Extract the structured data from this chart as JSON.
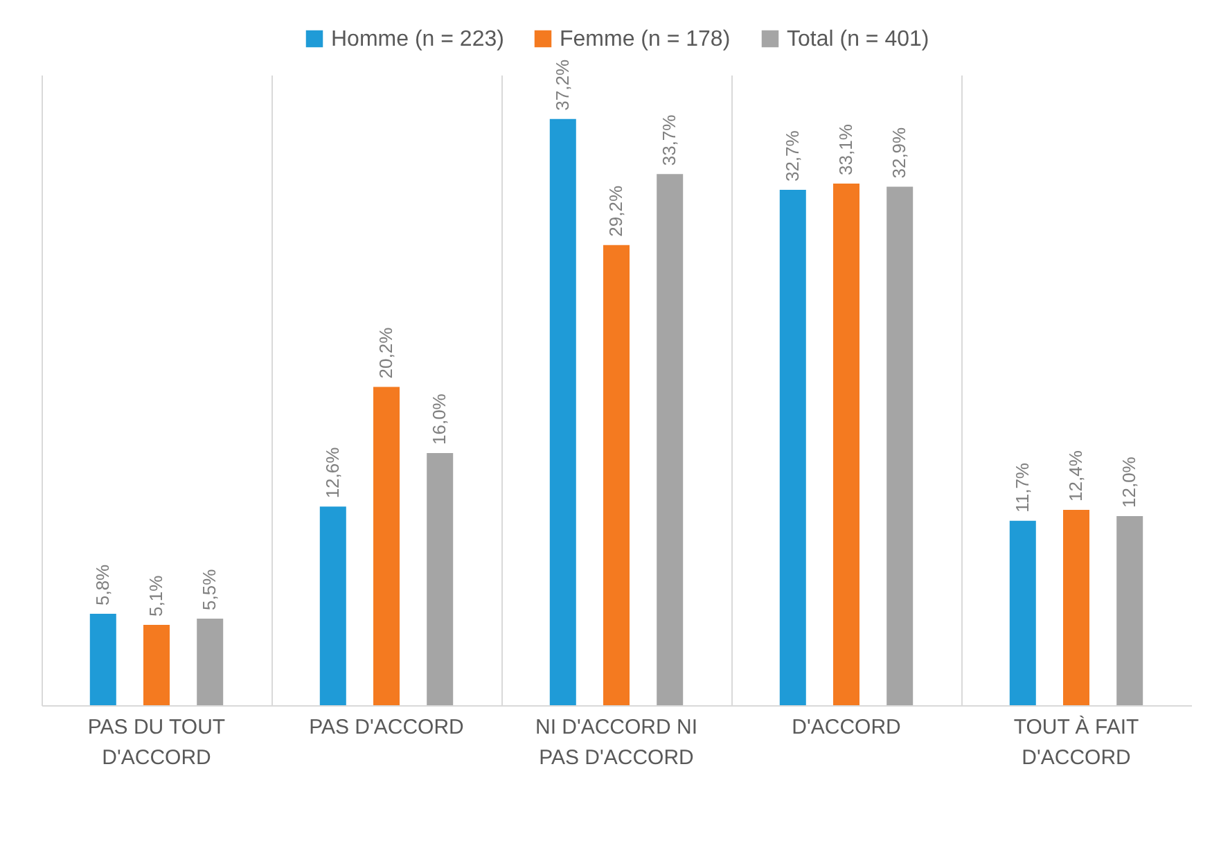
{
  "chart_data": {
    "type": "bar",
    "categories": [
      "PAS DU TOUT D'ACCORD",
      "PAS D'ACCORD",
      "NI D'ACCORD NI PAS D'ACCORD",
      "D'ACCORD",
      "TOUT À FAIT D'ACCORD"
    ],
    "series": [
      {
        "name": "Homme (n = 223)",
        "color": "#1f9bd7",
        "values": [
          5.8,
          12.6,
          37.2,
          32.7,
          11.7
        ],
        "value_labels": [
          "5,8%",
          "12,6%",
          "37,2%",
          "32,7%",
          "11,7%"
        ]
      },
      {
        "name": "Femme (n = 178)",
        "color": "#f47a20",
        "values": [
          5.1,
          20.2,
          29.2,
          33.1,
          12.4
        ],
        "value_labels": [
          "5,1%",
          "20,2%",
          "29,2%",
          "33,1%",
          "12,4%"
        ]
      },
      {
        "name": "Total (n = 401)",
        "color": "#a5a5a5",
        "values": [
          5.5,
          16.0,
          33.7,
          32.9,
          12.0
        ],
        "value_labels": [
          "5,5%",
          "16,0%",
          "33,7%",
          "32,9%",
          "12,0%"
        ]
      }
    ],
    "grid": "x",
    "legend": "top"
  }
}
